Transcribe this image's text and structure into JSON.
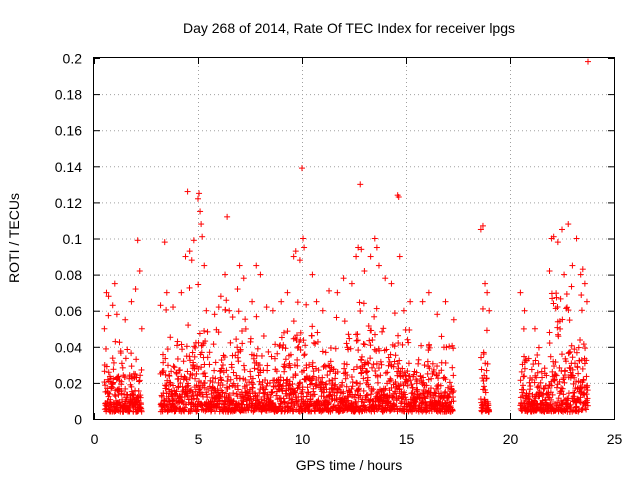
{
  "chart_data": {
    "type": "scatter",
    "title": "Day 268 of 2014, Rate Of TEC Index for receiver lpgs",
    "xlabel": "GPS time / hours",
    "ylabel": "ROTI / TECUs",
    "xlim": [
      0,
      25
    ],
    "ylim": [
      0,
      0.2
    ],
    "xticks": [
      0,
      5,
      10,
      15,
      20,
      25
    ],
    "yticks": [
      0,
      0.02,
      0.04,
      0.06,
      0.08,
      0.1,
      0.12,
      0.14,
      0.16,
      0.18,
      0.2
    ],
    "xtick_labels": [
      "0",
      "5",
      "10",
      "15",
      "20",
      "25"
    ],
    "ytick_labels": [
      "0",
      "0.02",
      "0.04",
      "0.06",
      "0.08",
      "0.1",
      "0.12",
      "0.14",
      "0.16",
      "0.18",
      "0.2"
    ],
    "grid": true,
    "marker": "plus",
    "color": "#ff0000",
    "data_gaps_hours": [
      [
        17.6,
        18.6
      ],
      [
        19.1,
        20.4
      ]
    ],
    "series": [
      {
        "name": "ROTI",
        "points": [
          [
            0.5,
            0.05
          ],
          [
            0.6,
            0.07
          ],
          [
            0.7,
            0.068
          ],
          [
            0.9,
            0.063
          ],
          [
            1.0,
            0.075
          ],
          [
            1.1,
            0.058
          ],
          [
            1.5,
            0.055
          ],
          [
            1.8,
            0.065
          ],
          [
            2.0,
            0.072
          ],
          [
            2.1,
            0.099
          ],
          [
            2.2,
            0.082
          ],
          [
            2.3,
            0.05
          ],
          [
            3.2,
            0.063
          ],
          [
            3.4,
            0.098
          ],
          [
            3.5,
            0.07
          ],
          [
            3.8,
            0.062
          ],
          [
            4.2,
            0.07
          ],
          [
            4.4,
            0.09
          ],
          [
            4.5,
            0.126
          ],
          [
            4.6,
            0.093
          ],
          [
            4.7,
            0.088
          ],
          [
            4.8,
            0.099
          ],
          [
            5.0,
            0.122
          ],
          [
            5.05,
            0.125
          ],
          [
            5.1,
            0.115
          ],
          [
            5.15,
            0.108
          ],
          [
            5.2,
            0.101
          ],
          [
            5.3,
            0.085
          ],
          [
            5.4,
            0.06
          ],
          [
            5.8,
            0.058
          ],
          [
            6.0,
            0.062
          ],
          [
            6.1,
            0.068
          ],
          [
            6.3,
            0.08
          ],
          [
            6.4,
            0.112
          ],
          [
            6.5,
            0.06
          ],
          [
            6.9,
            0.072
          ],
          [
            7.0,
            0.085
          ],
          [
            7.2,
            0.078
          ],
          [
            7.6,
            0.065
          ],
          [
            7.8,
            0.085
          ],
          [
            8.0,
            0.08
          ],
          [
            8.3,
            0.062
          ],
          [
            8.6,
            0.06
          ],
          [
            9.0,
            0.065
          ],
          [
            9.3,
            0.07
          ],
          [
            9.6,
            0.09
          ],
          [
            9.7,
            0.093
          ],
          [
            9.9,
            0.088
          ],
          [
            10.0,
            0.139
          ],
          [
            10.05,
            0.1
          ],
          [
            10.1,
            0.095
          ],
          [
            10.5,
            0.08
          ],
          [
            10.7,
            0.065
          ],
          [
            11.0,
            0.06
          ],
          [
            11.3,
            0.071
          ],
          [
            11.7,
            0.07
          ],
          [
            12.0,
            0.078
          ],
          [
            12.4,
            0.075
          ],
          [
            12.6,
            0.09
          ],
          [
            12.7,
            0.095
          ],
          [
            12.8,
            0.13
          ],
          [
            12.85,
            0.094
          ],
          [
            13.0,
            0.082
          ],
          [
            13.3,
            0.09
          ],
          [
            13.5,
            0.1
          ],
          [
            13.6,
            0.095
          ],
          [
            13.7,
            0.085
          ],
          [
            14.0,
            0.078
          ],
          [
            14.3,
            0.075
          ],
          [
            14.6,
            0.124
          ],
          [
            14.65,
            0.123
          ],
          [
            14.7,
            0.09
          ],
          [
            14.9,
            0.06
          ],
          [
            15.2,
            0.065
          ],
          [
            15.8,
            0.065
          ],
          [
            16.1,
            0.07
          ],
          [
            16.5,
            0.058
          ],
          [
            16.9,
            0.065
          ],
          [
            17.3,
            0.055
          ],
          [
            18.6,
            0.105
          ],
          [
            18.7,
            0.107
          ],
          [
            18.8,
            0.075
          ],
          [
            18.9,
            0.07
          ],
          [
            19.0,
            0.06
          ],
          [
            20.5,
            0.07
          ],
          [
            20.7,
            0.06
          ],
          [
            21.2,
            0.05
          ],
          [
            21.9,
            0.082
          ],
          [
            22.0,
            0.1
          ],
          [
            22.1,
            0.101
          ],
          [
            22.3,
            0.098
          ],
          [
            22.5,
            0.105
          ],
          [
            22.6,
            0.08
          ],
          [
            22.8,
            0.108
          ],
          [
            23.0,
            0.085
          ],
          [
            23.2,
            0.1
          ],
          [
            23.4,
            0.08
          ],
          [
            23.5,
            0.083
          ],
          [
            23.6,
            0.075
          ],
          [
            23.7,
            0.065
          ],
          [
            23.75,
            0.198
          ]
        ]
      }
    ]
  }
}
